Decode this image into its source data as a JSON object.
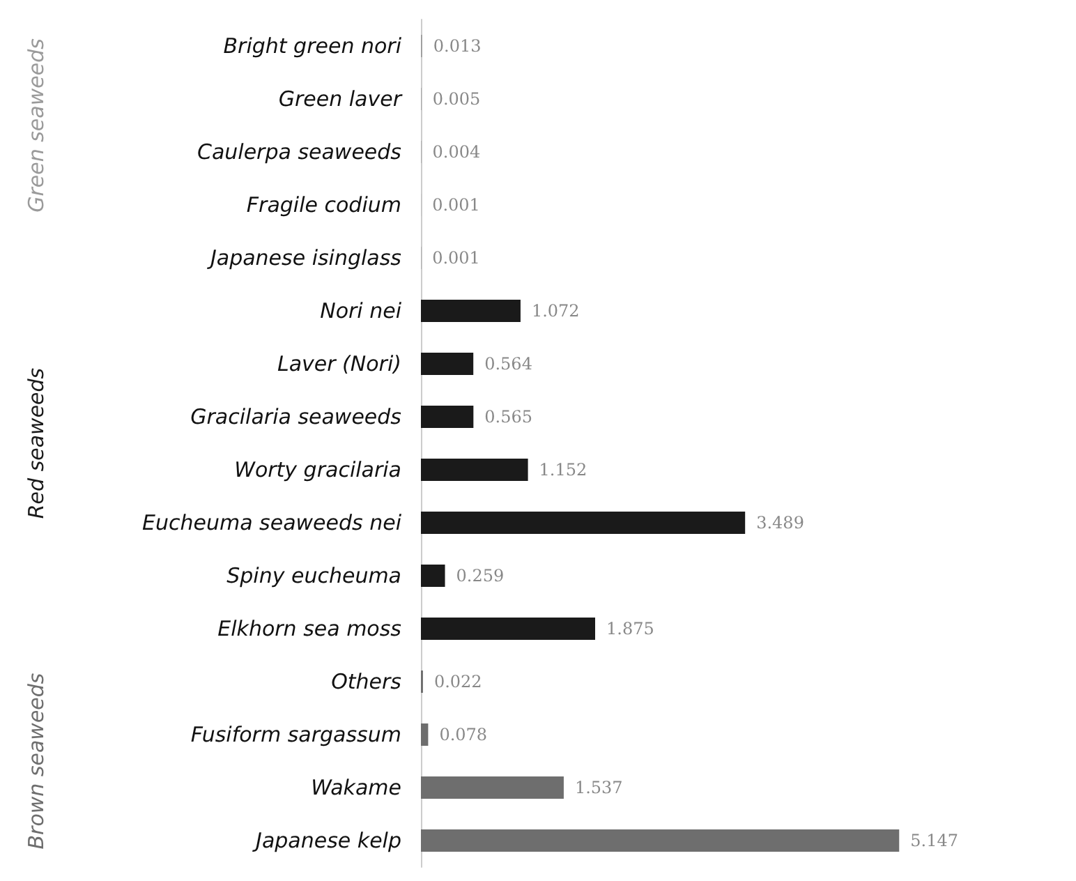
{
  "chart_data": {
    "type": "bar",
    "orientation": "horizontal",
    "data_labels": true,
    "legend": false,
    "grid": false,
    "categories": [
      "Bright green nori",
      "Green laver",
      "Caulerpa seaweeds",
      "Fragile codium",
      "Japanese isinglass",
      "Nori nei",
      "Laver (Nori)",
      "Gracilaria seaweeds",
      "Worty gracilaria",
      "Eucheuma seaweeds nei",
      "Spiny eucheuma",
      "Elkhorn sea moss",
      "Others",
      "Fusiform sargassum",
      "Wakame",
      "Japanese kelp"
    ],
    "series": [
      {
        "name": "Green seaweeds",
        "color": "#9a9a9a",
        "values": [
          0.013,
          0.005,
          0.004,
          0.001,
          null,
          null,
          null,
          null,
          null,
          null,
          null,
          null,
          null,
          null,
          null,
          null
        ]
      },
      {
        "name": "Red seaweeds",
        "color": "#1a1a1a",
        "values": [
          null,
          null,
          null,
          null,
          0.001,
          1.072,
          0.564,
          0.565,
          1.152,
          3.489,
          0.259,
          1.875,
          null,
          null,
          null,
          null
        ]
      },
      {
        "name": "Brown seaweeds",
        "color": "#6e6e6e",
        "values": [
          null,
          null,
          null,
          null,
          null,
          null,
          null,
          null,
          null,
          null,
          null,
          null,
          0.022,
          0.078,
          1.537,
          5.147
        ]
      }
    ]
  }
}
